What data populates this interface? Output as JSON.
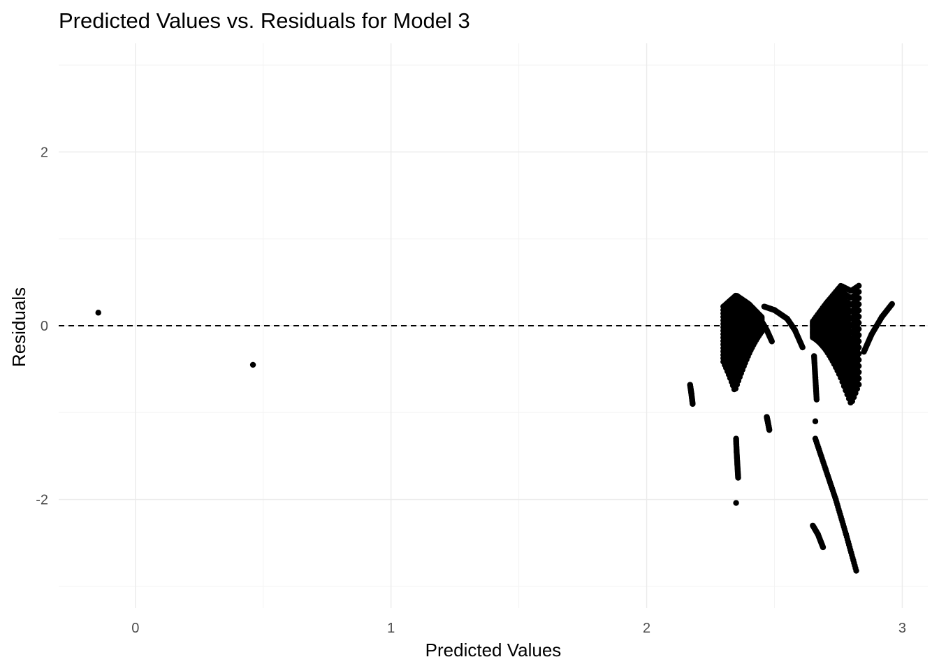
{
  "chart_data": {
    "type": "scatter",
    "title": "Predicted Values vs. Residuals for Model 3",
    "xlabel": "Predicted Values",
    "ylabel": "Residuals",
    "xlim": [
      -0.3,
      3.1
    ],
    "ylim": [
      -3.25,
      3.25
    ],
    "x_ticks": [
      0,
      1,
      2,
      3
    ],
    "y_ticks": [
      -2,
      0,
      2
    ],
    "x_tick_labels": [
      "0",
      "1",
      "2",
      "3"
    ],
    "y_tick_labels": [
      "-2",
      "0",
      "2"
    ],
    "reference_line": {
      "y": 0,
      "style": "dashed",
      "color": "#000000"
    },
    "grid": true,
    "point_color": "#000000",
    "isolated_points": [
      {
        "x": -0.145,
        "y": 0.15
      },
      {
        "x": 0.46,
        "y": -0.45
      },
      {
        "x": 2.35,
        "y": -2.04
      },
      {
        "x": 2.66,
        "y": -1.1
      }
    ],
    "point_groups": [
      {
        "shape": "fan",
        "x": [
          2.3,
          2.45
        ],
        "apex": {
          "x": 2.345,
          "y": -0.75
        },
        "top": [
          [
            2.3,
            0.22
          ],
          [
            2.35,
            0.35
          ],
          [
            2.4,
            0.25
          ],
          [
            2.45,
            0.1
          ]
        ]
      },
      {
        "shape": "curve",
        "points": [
          [
            2.45,
            0.05
          ],
          [
            2.47,
            -0.05
          ],
          [
            2.49,
            -0.18
          ]
        ]
      },
      {
        "shape": "curve",
        "points": [
          [
            2.46,
            0.22
          ],
          [
            2.5,
            0.18
          ],
          [
            2.55,
            0.08
          ],
          [
            2.58,
            -0.05
          ],
          [
            2.61,
            -0.25
          ]
        ]
      },
      {
        "shape": "curve",
        "points": [
          [
            2.17,
            -0.68
          ],
          [
            2.175,
            -0.78
          ],
          [
            2.18,
            -0.9
          ]
        ]
      },
      {
        "shape": "curve",
        "points": [
          [
            2.35,
            -1.3
          ],
          [
            2.352,
            -1.45
          ],
          [
            2.355,
            -1.6
          ],
          [
            2.358,
            -1.75
          ]
        ]
      },
      {
        "shape": "curve",
        "points": [
          [
            2.47,
            -1.05
          ],
          [
            2.475,
            -1.12
          ],
          [
            2.48,
            -1.2
          ]
        ]
      },
      {
        "shape": "curve",
        "points": [
          [
            2.655,
            -0.35
          ],
          [
            2.66,
            -0.6
          ],
          [
            2.665,
            -0.85
          ]
        ]
      },
      {
        "shape": "curve",
        "points": [
          [
            2.66,
            -1.3
          ],
          [
            2.7,
            -1.65
          ],
          [
            2.74,
            -2.0
          ],
          [
            2.78,
            -2.4
          ],
          [
            2.82,
            -2.82
          ]
        ]
      },
      {
        "shape": "curve",
        "points": [
          [
            2.65,
            -2.3
          ],
          [
            2.67,
            -2.4
          ],
          [
            2.69,
            -2.55
          ]
        ]
      },
      {
        "shape": "fan",
        "x": [
          2.65,
          2.83
        ],
        "apex": {
          "x": 2.8,
          "y": -0.9
        },
        "top": [
          [
            2.65,
            0.05
          ],
          [
            2.7,
            0.25
          ],
          [
            2.76,
            0.46
          ],
          [
            2.8,
            0.4
          ],
          [
            2.83,
            0.46
          ]
        ]
      },
      {
        "shape": "curve",
        "points": [
          [
            2.85,
            -0.3
          ],
          [
            2.88,
            -0.1
          ],
          [
            2.92,
            0.1
          ],
          [
            2.96,
            0.25
          ]
        ]
      }
    ]
  }
}
